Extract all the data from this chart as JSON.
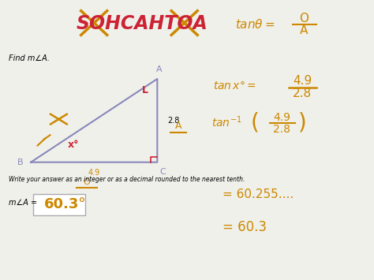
{
  "bg_color": "#f0f0eb",
  "title_color": "#cc2233",
  "handwriting_color": "#cc8800",
  "find_text": "Find m∠A.",
  "triangle": {
    "B": [
      0.08,
      0.42
    ],
    "C": [
      0.42,
      0.42
    ],
    "A": [
      0.42,
      0.72
    ]
  },
  "label_B": "B",
  "label_C": "C",
  "label_A": "A",
  "side_bc": "4.9",
  "side_ac": "2.8",
  "angle_label": "x°",
  "bottom_text": "Write your answer as an integer or as a decimal rounded to the nearest tenth.",
  "answer_label": "m∠A =",
  "answer_value": "60.3°",
  "right_answers": [
    "= 60.255....",
    "= 60.3"
  ]
}
